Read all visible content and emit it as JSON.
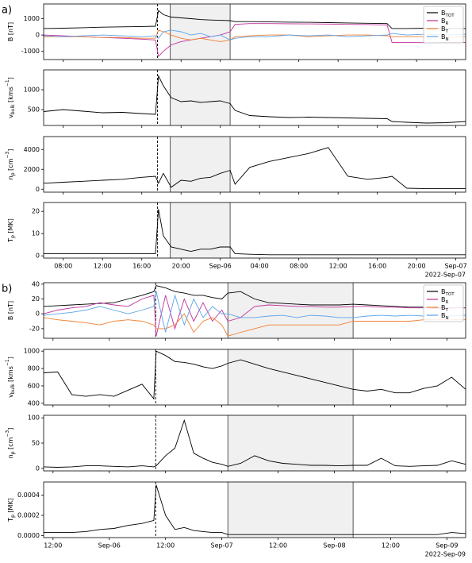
{
  "chart_data": [
    {
      "type": "line",
      "panel_label": "a)",
      "date_label": "2022-Sep-07",
      "xlim": [
        6,
        49
      ],
      "xticks": [
        {
          "value": 8,
          "label": "08:00"
        },
        {
          "value": 12,
          "label": "12:00"
        },
        {
          "value": 16,
          "label": "16:00"
        },
        {
          "value": 20,
          "label": "20:00"
        },
        {
          "value": 24,
          "label": "Sep-06"
        },
        {
          "value": 28,
          "label": "04:00"
        },
        {
          "value": 32,
          "label": "08:00"
        },
        {
          "value": 36,
          "label": "12:00"
        },
        {
          "value": 40,
          "label": "16:00"
        },
        {
          "value": 44,
          "label": "20:00"
        },
        {
          "value": 48,
          "label": "Sep-07"
        }
      ],
      "shock_time": 17.6,
      "shaded_interval": [
        18.9,
        25.0
      ],
      "x": [
        6,
        8,
        10,
        12,
        14,
        16,
        17.4,
        17.7,
        18.2,
        19,
        20,
        21,
        22,
        23,
        24,
        25,
        25.5,
        27,
        29,
        31,
        33,
        35,
        37,
        39,
        41,
        41.5,
        43,
        45,
        47,
        49
      ],
      "panels": [
        {
          "ylabel": [
            {
              "text": "B [nT]"
            }
          ],
          "ylim": [
            -1500,
            1900
          ],
          "yticks": [
            -1000,
            0,
            1000
          ],
          "legend": "upper right",
          "series": [
            {
              "name": "B",
              "name_sub": "TOT",
              "color": "#000000",
              "values": [
                400,
                420,
                450,
                480,
                500,
                520,
                540,
                1500,
                1250,
                1100,
                1050,
                1000,
                950,
                920,
                900,
                880,
                820,
                820,
                800,
                790,
                780,
                760,
                740,
                720,
                700,
                400,
                400,
                420,
                400,
                400
              ]
            },
            {
              "name": "B",
              "name_sub": "R",
              "color": "#c0309a",
              "values": [
                0,
                -50,
                -100,
                -150,
                -200,
                -250,
                -300,
                -1300,
                -1000,
                -600,
                -400,
                -300,
                -200,
                -100,
                0,
                200,
                650,
                700,
                700,
                690,
                680,
                670,
                650,
                640,
                620,
                -450,
                -450,
                -470,
                -450,
                -450
              ]
            },
            {
              "name": "B",
              "name_sub": "T",
              "color": "#f07f30",
              "values": [
                -100,
                -100,
                -100,
                -150,
                -150,
                -200,
                -200,
                300,
                200,
                0,
                -200,
                -300,
                -200,
                -300,
                -400,
                -300,
                -100,
                -50,
                0,
                0,
                -100,
                -50,
                0,
                0,
                -50,
                -100,
                -100,
                -100,
                -100,
                -100
              ]
            },
            {
              "name": "B",
              "name_sub": "N",
              "color": "#5ca5ea",
              "values": [
                -50,
                -100,
                -50,
                0,
                -50,
                -100,
                -50,
                -200,
                200,
                300,
                200,
                0,
                100,
                -100,
                0,
                -300,
                -200,
                -100,
                -100,
                0,
                -50,
                0,
                -100,
                -50,
                0,
                100,
                0,
                50,
                0,
                50
              ]
            }
          ]
        },
        {
          "ylabel": [
            {
              "text": "v"
            },
            {
              "text": "bulk",
              "sub": true
            },
            {
              "text": " [kms"
            },
            {
              "text": "−1",
              "sup": true
            },
            {
              "text": "]"
            }
          ],
          "ylim": [
            100,
            1500
          ],
          "yticks": [
            500,
            1000
          ],
          "series": [
            {
              "color": "#000000",
              "values": [
                450,
                500,
                460,
                420,
                430,
                400,
                380,
                1350,
                1100,
                800,
                700,
                720,
                680,
                700,
                720,
                650,
                480,
                350,
                320,
                300,
                310,
                300,
                290,
                280,
                270,
                200,
                180,
                160,
                170,
                200
              ]
            }
          ]
        },
        {
          "ylabel": [
            {
              "text": "n"
            },
            {
              "text": "p",
              "sub": true
            },
            {
              "text": " [cm"
            },
            {
              "text": "−3",
              "sup": true
            },
            {
              "text": "]"
            }
          ],
          "ylim": [
            -300,
            5300
          ],
          "yticks": [
            0,
            2000,
            4000
          ],
          "series": [
            {
              "color": "#000000",
              "values": [
                600,
                700,
                800,
                900,
                1000,
                1200,
                1300,
                600,
                1600,
                200,
                900,
                800,
                1100,
                1200,
                1600,
                1900,
                500,
                2200,
                2800,
                3200,
                3600,
                4200,
                1300,
                1000,
                1200,
                1300,
                100,
                50,
                50,
                50
              ]
            }
          ]
        },
        {
          "ylabel": [
            {
              "text": "T"
            },
            {
              "text": "p",
              "sub": true
            },
            {
              "text": " [MK]"
            }
          ],
          "ylim": [
            -1,
            24
          ],
          "yticks": [
            0,
            10,
            20
          ],
          "series": [
            {
              "color": "#000000",
              "values": [
                1,
                1,
                1,
                1,
                1,
                1,
                1,
                21,
                9,
                4,
                3,
                2,
                3,
                3,
                4,
                4,
                1,
                0.7,
                0.5,
                0.5,
                0.5,
                0.5,
                0.5,
                0.5,
                0.5,
                0.5,
                0.5,
                0.5,
                0.5,
                0.5
              ]
            }
          ]
        }
      ]
    },
    {
      "type": "line",
      "panel_label": "b)",
      "date_label": "2022-Sep-09",
      "xlim": [
        10,
        100
      ],
      "xticks": [
        {
          "value": 12,
          "label": "12:00"
        },
        {
          "value": 24,
          "label": "Sep-06"
        },
        {
          "value": 36,
          "label": "12:00"
        },
        {
          "value": 48,
          "label": "Sep-07"
        },
        {
          "value": 60,
          "label": "12:00"
        },
        {
          "value": 72,
          "label": "Sep-08"
        },
        {
          "value": 84,
          "label": "12:00"
        },
        {
          "value": 96,
          "label": "Sep-09"
        }
      ],
      "shock_time": 33.9,
      "shaded_interval": [
        49.3,
        76
      ],
      "x": [
        10,
        13,
        16,
        19,
        22,
        25,
        28,
        31,
        33.5,
        34,
        36,
        38,
        40,
        42,
        44,
        46,
        48,
        49.3,
        52,
        55,
        58,
        61,
        64,
        67,
        70,
        73,
        76,
        79,
        82,
        85,
        88,
        91,
        94,
        97,
        100
      ],
      "panels": [
        {
          "ylabel": [
            {
              "text": "B [nT]"
            }
          ],
          "ylim": [
            -33,
            42
          ],
          "yticks": [
            -20,
            0,
            20,
            40
          ],
          "legend": "upper right",
          "series": [
            {
              "name": "B",
              "name_sub": "TOT",
              "color": "#000000",
              "values": [
                10,
                11,
                12,
                13,
                14,
                15,
                20,
                25,
                30,
                38,
                35,
                30,
                28,
                25,
                25,
                22,
                20,
                28,
                30,
                20,
                15,
                14,
                13,
                12,
                12,
                12,
                13,
                12,
                11,
                10,
                9,
                9,
                8,
                8,
                8
              ]
            },
            {
              "name": "B",
              "name_sub": "R",
              "color": "#c0309a",
              "values": [
                0,
                5,
                8,
                10,
                15,
                12,
                10,
                20,
                25,
                -30,
                25,
                -20,
                20,
                -10,
                15,
                -10,
                5,
                -10,
                -5,
                10,
                12,
                11,
                10,
                10,
                9,
                9,
                10,
                10,
                9,
                9,
                8,
                8,
                7,
                8,
                8
              ]
            },
            {
              "name": "B",
              "name_sub": "T",
              "color": "#f07f30",
              "values": [
                -5,
                -8,
                -10,
                -12,
                -15,
                -10,
                -8,
                -10,
                -15,
                -20,
                -20,
                -15,
                0,
                -25,
                -10,
                -5,
                -15,
                -30,
                -25,
                -20,
                -15,
                -15,
                -15,
                -15,
                -15,
                -15,
                -10,
                -10,
                -10,
                -10,
                -10,
                -8,
                -8,
                -8,
                -8
              ]
            },
            {
              "name": "B",
              "name_sub": "N",
              "color": "#5ca5ea",
              "values": [
                -2,
                0,
                2,
                5,
                10,
                5,
                0,
                5,
                10,
                30,
                -25,
                25,
                -15,
                20,
                -5,
                10,
                0,
                0,
                -5,
                -5,
                -3,
                -2,
                -5,
                -2,
                -3,
                -5,
                -5,
                -3,
                -2,
                -3,
                -2,
                -3,
                -2,
                -3,
                -2
              ]
            }
          ]
        },
        {
          "ylabel": [
            {
              "text": "v"
            },
            {
              "text": "bulk",
              "sub": true
            },
            {
              "text": " [kms"
            },
            {
              "text": "−1",
              "sup": true
            },
            {
              "text": "]"
            }
          ],
          "ylim": [
            380,
            1020
          ],
          "yticks": [
            400,
            600,
            800,
            1000
          ],
          "series": [
            {
              "color": "#000000",
              "values": [
                750,
                760,
                500,
                480,
                500,
                480,
                550,
                620,
                450,
                1000,
                950,
                880,
                870,
                850,
                820,
                800,
                830,
                860,
                900,
                850,
                800,
                760,
                720,
                680,
                640,
                600,
                560,
                540,
                560,
                520,
                520,
                570,
                600,
                700,
                560
              ]
            }
          ]
        },
        {
          "ylabel": [
            {
              "text": "n"
            },
            {
              "text": "p",
              "sub": true
            },
            {
              "text": " [cm"
            },
            {
              "text": "−3",
              "sup": true
            },
            {
              "text": "]"
            }
          ],
          "ylim": [
            -5,
            105
          ],
          "yticks": [
            0,
            50,
            100
          ],
          "series": [
            {
              "color": "#000000",
              "values": [
                3,
                2,
                3,
                5,
                5,
                4,
                3,
                5,
                3,
                5,
                25,
                40,
                95,
                30,
                20,
                12,
                8,
                4,
                10,
                25,
                15,
                10,
                8,
                6,
                6,
                5,
                6,
                6,
                20,
                5,
                4,
                5,
                6,
                15,
                8
              ]
            }
          ]
        },
        {
          "ylabel": [
            {
              "text": "T"
            },
            {
              "text": "p",
              "sub": true
            },
            {
              "text": " [MK]"
            }
          ],
          "ylim": [
            -2e-05,
            0.00053
          ],
          "yticks": [
            {
              "value": 0,
              "label": "0.0000"
            },
            {
              "value": 0.0002,
              "label": "0.0002"
            },
            {
              "value": 0.0004,
              "label": "0.0004"
            }
          ],
          "series": [
            {
              "color": "#000000",
              "values": [
                3e-05,
                3e-05,
                3e-05,
                4e-05,
                6e-05,
                7e-05,
                0.0001,
                0.00012,
                0.00015,
                0.0005,
                0.0002,
                6e-05,
                8e-05,
                5e-05,
                4e-05,
                3e-05,
                3e-05,
                1e-05,
                1e-05,
                1e-05,
                1e-05,
                1e-05,
                1e-05,
                1e-05,
                1e-05,
                1e-05,
                1e-05,
                1e-05,
                1e-05,
                1e-05,
                1e-05,
                1e-05,
                1e-05,
                3e-05,
                2e-05
              ]
            }
          ]
        }
      ]
    }
  ]
}
